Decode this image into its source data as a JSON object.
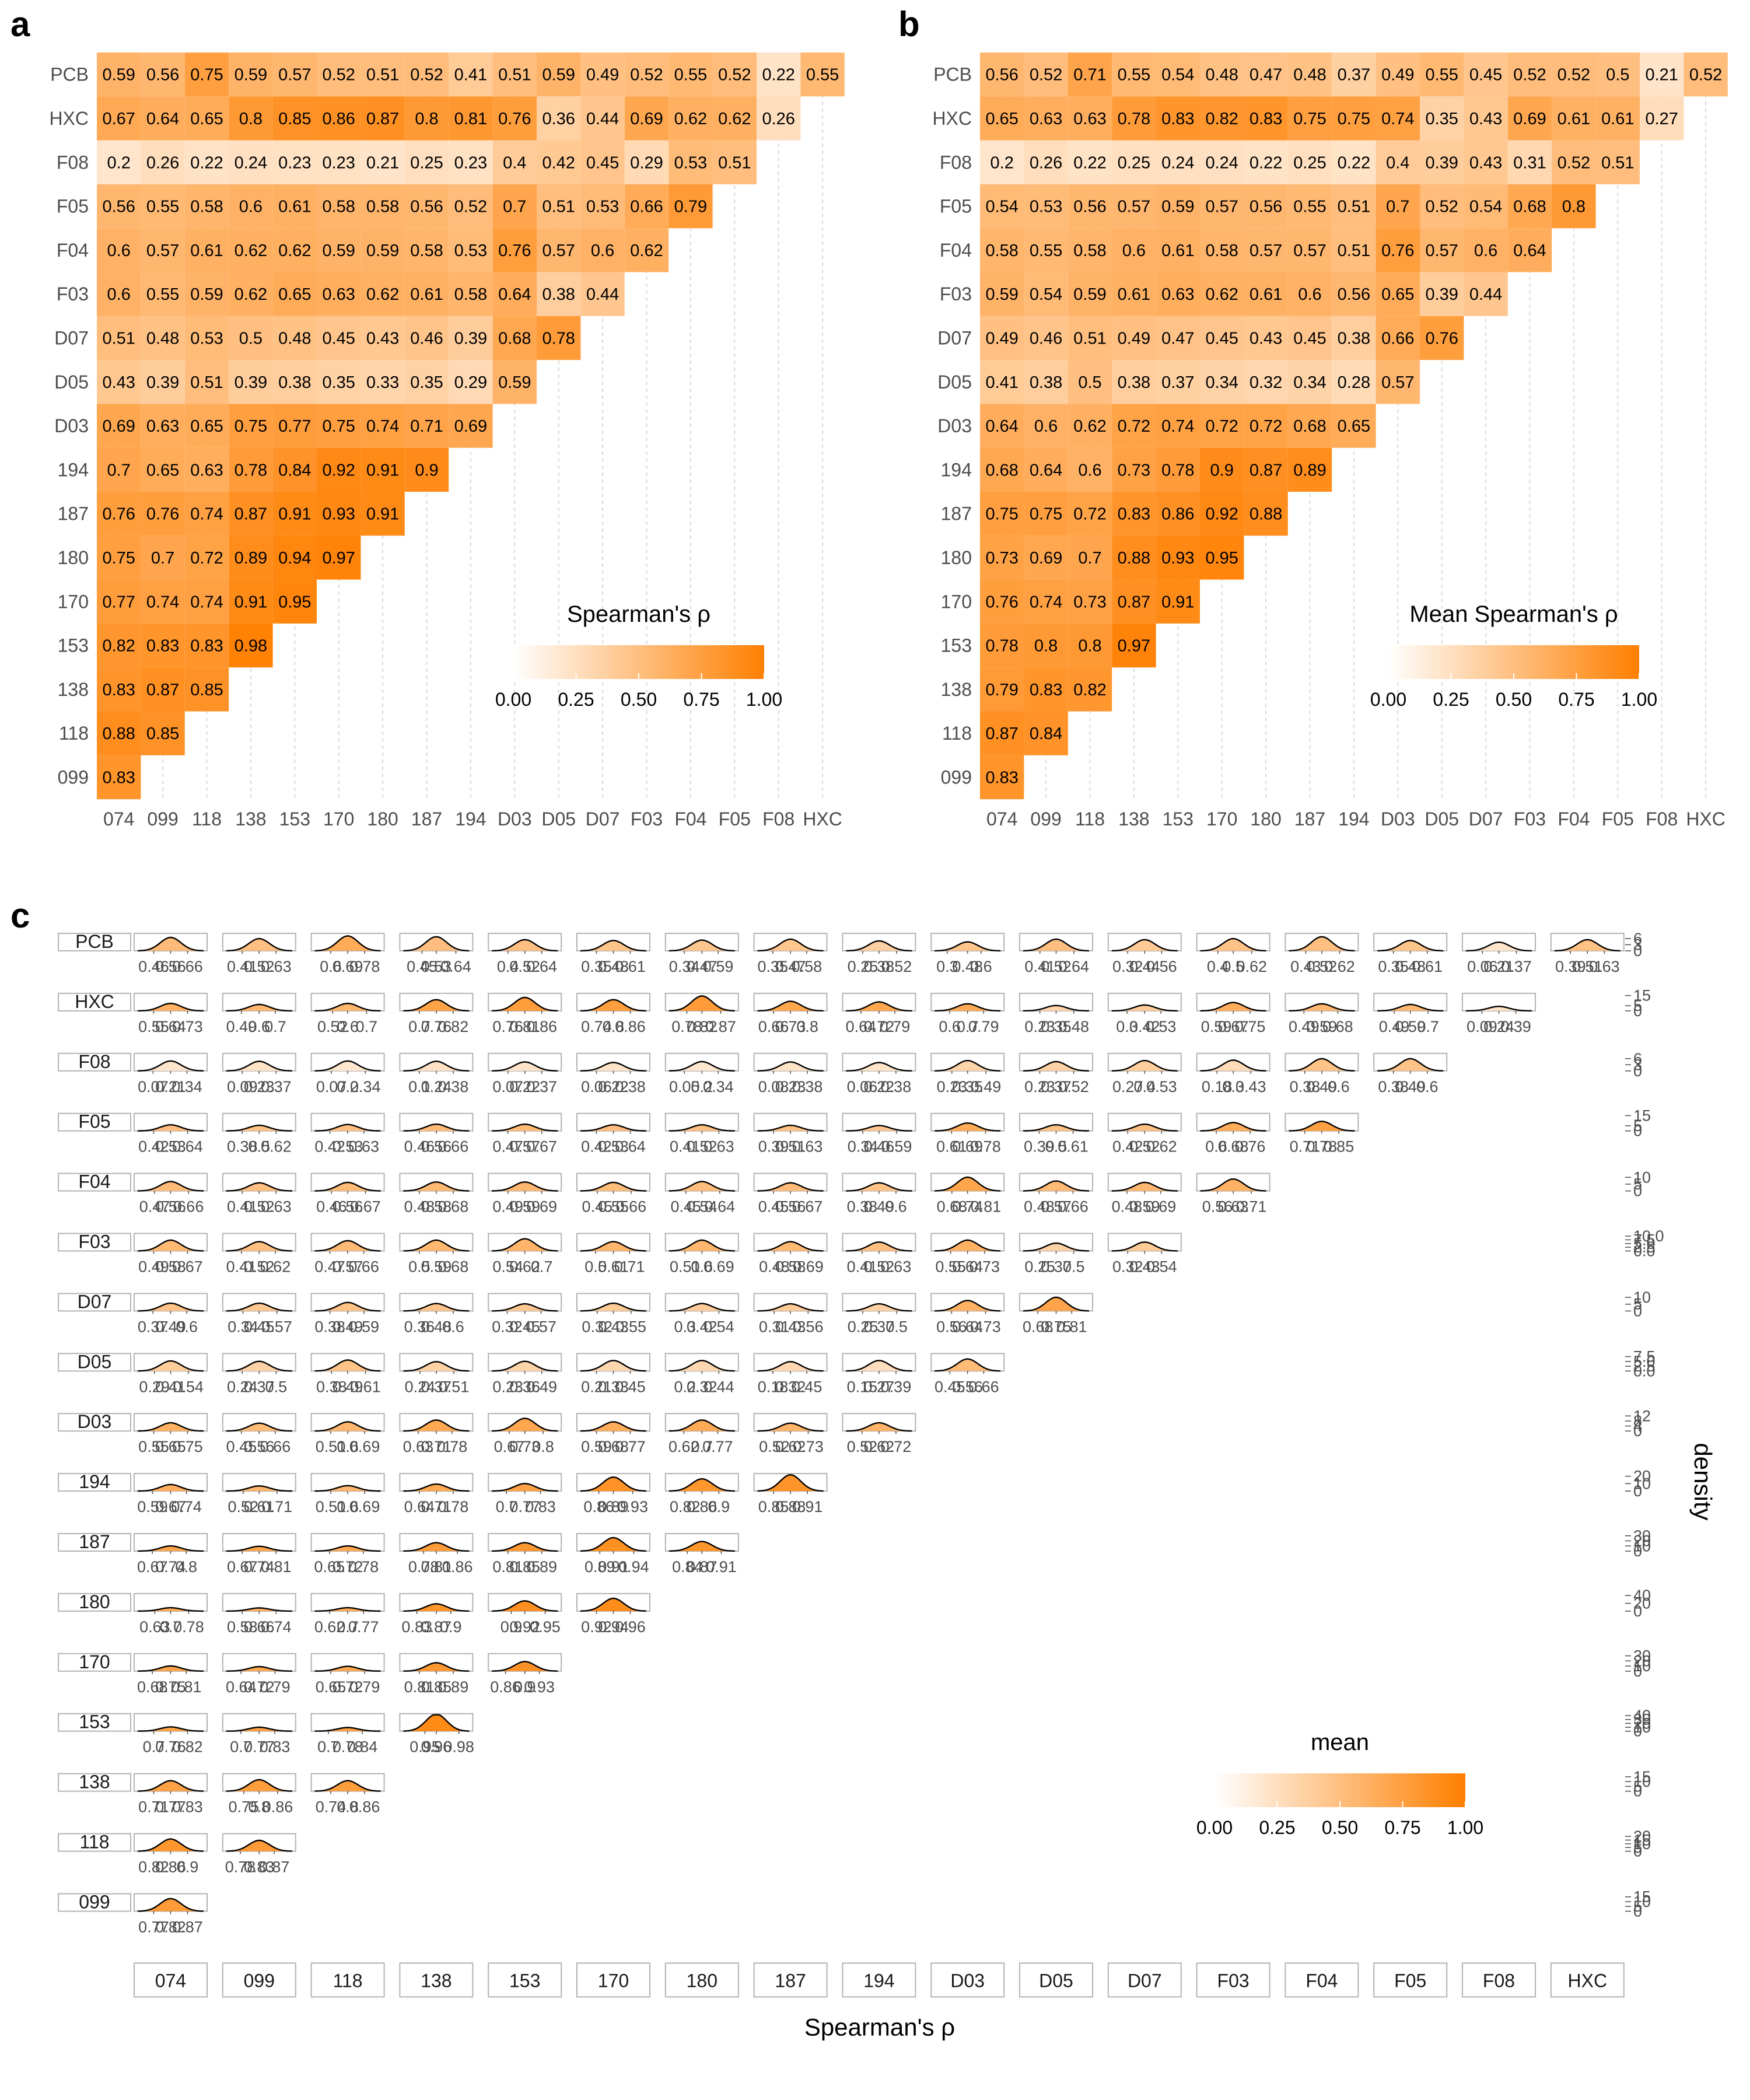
{
  "colors": {
    "low": "#ffffff",
    "high": "#ff7f00",
    "grid": "#d9d9d9",
    "strip_border": "#b3b3b3",
    "tick_text": "#4d4d4d",
    "curve": "#000000"
  },
  "panels": {
    "a": "a",
    "b": "b",
    "c": "c"
  },
  "chart_data": [
    {
      "type": "heatmap",
      "panel": "a",
      "legend_title": "Spearman's ρ",
      "legend_ticks": [
        "0.00",
        "0.25",
        "0.50",
        "0.75",
        "1.00"
      ],
      "legend_range": [
        0,
        1
      ],
      "legend_position": "inside-bottom-right",
      "xlabels": [
        "074",
        "099",
        "118",
        "138",
        "153",
        "170",
        "180",
        "187",
        "194",
        "D03",
        "D05",
        "D07",
        "F03",
        "F04",
        "F05",
        "F08",
        "HXC"
      ],
      "ylabels": [
        "PCB",
        "HXC",
        "F08",
        "F05",
        "F04",
        "F03",
        "D07",
        "D05",
        "D03",
        "194",
        "187",
        "180",
        "170",
        "153",
        "138",
        "118",
        "099"
      ],
      "rows": [
        [
          "0.59",
          "0.56",
          "0.75",
          "0.59",
          "0.57",
          "0.52",
          "0.51",
          "0.52",
          "0.41",
          "0.51",
          "0.59",
          "0.49",
          "0.52",
          "0.55",
          "0.52",
          "0.22",
          "0.55"
        ],
        [
          "0.67",
          "0.64",
          "0.65",
          "0.8",
          "0.85",
          "0.86",
          "0.87",
          "0.8",
          "0.81",
          "0.76",
          "0.36",
          "0.44",
          "0.69",
          "0.62",
          "0.62",
          "0.26"
        ],
        [
          "0.2",
          "0.26",
          "0.22",
          "0.24",
          "0.23",
          "0.23",
          "0.21",
          "0.25",
          "0.23",
          "0.4",
          "0.42",
          "0.45",
          "0.29",
          "0.53",
          "0.51"
        ],
        [
          "0.56",
          "0.55",
          "0.58",
          "0.6",
          "0.61",
          "0.58",
          "0.58",
          "0.56",
          "0.52",
          "0.7",
          "0.51",
          "0.53",
          "0.66",
          "0.79"
        ],
        [
          "0.6",
          "0.57",
          "0.61",
          "0.62",
          "0.62",
          "0.59",
          "0.59",
          "0.58",
          "0.53",
          "0.76",
          "0.57",
          "0.6",
          "0.62"
        ],
        [
          "0.6",
          "0.55",
          "0.59",
          "0.62",
          "0.65",
          "0.63",
          "0.62",
          "0.61",
          "0.58",
          "0.64",
          "0.38",
          "0.44"
        ],
        [
          "0.51",
          "0.48",
          "0.53",
          "0.5",
          "0.48",
          "0.45",
          "0.43",
          "0.46",
          "0.39",
          "0.68",
          "0.78"
        ],
        [
          "0.43",
          "0.39",
          "0.51",
          "0.39",
          "0.38",
          "0.35",
          "0.33",
          "0.35",
          "0.29",
          "0.59"
        ],
        [
          "0.69",
          "0.63",
          "0.65",
          "0.75",
          "0.77",
          "0.75",
          "0.74",
          "0.71",
          "0.69"
        ],
        [
          "0.7",
          "0.65",
          "0.63",
          "0.78",
          "0.84",
          "0.92",
          "0.91",
          "0.9"
        ],
        [
          "0.76",
          "0.76",
          "0.74",
          "0.87",
          "0.91",
          "0.93",
          "0.91"
        ],
        [
          "0.75",
          "0.7",
          "0.72",
          "0.89",
          "0.94",
          "0.97"
        ],
        [
          "0.77",
          "0.74",
          "0.74",
          "0.91",
          "0.95"
        ],
        [
          "0.82",
          "0.83",
          "0.83",
          "0.98"
        ],
        [
          "0.83",
          "0.87",
          "0.85"
        ],
        [
          "0.88",
          "0.85"
        ],
        [
          "0.83"
        ]
      ]
    },
    {
      "type": "heatmap",
      "panel": "b",
      "legend_title": "Mean Spearman's ρ",
      "legend_ticks": [
        "0.00",
        "0.25",
        "0.50",
        "0.75",
        "1.00"
      ],
      "legend_range": [
        0,
        1
      ],
      "legend_position": "inside-bottom-right",
      "xlabels": [
        "074",
        "099",
        "118",
        "138",
        "153",
        "170",
        "180",
        "187",
        "194",
        "D03",
        "D05",
        "D07",
        "F03",
        "F04",
        "F05",
        "F08",
        "HXC"
      ],
      "ylabels": [
        "PCB",
        "HXC",
        "F08",
        "F05",
        "F04",
        "F03",
        "D07",
        "D05",
        "D03",
        "194",
        "187",
        "180",
        "170",
        "153",
        "138",
        "118",
        "099"
      ],
      "rows": [
        [
          "0.56",
          "0.52",
          "0.71",
          "0.55",
          "0.54",
          "0.48",
          "0.47",
          "0.48",
          "0.37",
          "0.49",
          "0.55",
          "0.45",
          "0.52",
          "0.52",
          "0.5",
          "0.21",
          "0.52"
        ],
        [
          "0.65",
          "0.63",
          "0.63",
          "0.78",
          "0.83",
          "0.82",
          "0.83",
          "0.75",
          "0.75",
          "0.74",
          "0.35",
          "0.43",
          "0.69",
          "0.61",
          "0.61",
          "0.27"
        ],
        [
          "0.2",
          "0.26",
          "0.22",
          "0.25",
          "0.24",
          "0.24",
          "0.22",
          "0.25",
          "0.22",
          "0.4",
          "0.39",
          "0.43",
          "0.31",
          "0.52",
          "0.51"
        ],
        [
          "0.54",
          "0.53",
          "0.56",
          "0.57",
          "0.59",
          "0.57",
          "0.56",
          "0.55",
          "0.51",
          "0.7",
          "0.52",
          "0.54",
          "0.68",
          "0.8"
        ],
        [
          "0.58",
          "0.55",
          "0.58",
          "0.6",
          "0.61",
          "0.58",
          "0.57",
          "0.57",
          "0.51",
          "0.76",
          "0.57",
          "0.6",
          "0.64"
        ],
        [
          "0.59",
          "0.54",
          "0.59",
          "0.61",
          "0.63",
          "0.62",
          "0.61",
          "0.6",
          "0.56",
          "0.65",
          "0.39",
          "0.44"
        ],
        [
          "0.49",
          "0.46",
          "0.51",
          "0.49",
          "0.47",
          "0.45",
          "0.43",
          "0.45",
          "0.38",
          "0.66",
          "0.76"
        ],
        [
          "0.41",
          "0.38",
          "0.5",
          "0.38",
          "0.37",
          "0.34",
          "0.32",
          "0.34",
          "0.28",
          "0.57"
        ],
        [
          "0.64",
          "0.6",
          "0.62",
          "0.72",
          "0.74",
          "0.72",
          "0.72",
          "0.68",
          "0.65"
        ],
        [
          "0.68",
          "0.64",
          "0.6",
          "0.73",
          "0.78",
          "0.9",
          "0.87",
          "0.89"
        ],
        [
          "0.75",
          "0.75",
          "0.72",
          "0.83",
          "0.86",
          "0.92",
          "0.88"
        ],
        [
          "0.73",
          "0.69",
          "0.7",
          "0.88",
          "0.93",
          "0.95"
        ],
        [
          "0.76",
          "0.74",
          "0.73",
          "0.87",
          "0.91"
        ],
        [
          "0.78",
          "0.8",
          "0.8",
          "0.97"
        ],
        [
          "0.79",
          "0.83",
          "0.82"
        ],
        [
          "0.87",
          "0.84"
        ],
        [
          "0.83"
        ]
      ]
    },
    {
      "type": "density-grid",
      "panel": "c",
      "xlabel": "Spearman's ρ",
      "ylabel": "density",
      "legend_title": "mean",
      "legend_ticks": [
        "0.00",
        "0.25",
        "0.50",
        "0.75",
        "1.00"
      ],
      "legend_range": [
        0,
        1
      ],
      "legend_position": "inside-bottom-right",
      "col_strips": [
        "074",
        "099",
        "118",
        "138",
        "153",
        "170",
        "180",
        "187",
        "194",
        "D03",
        "D05",
        "D07",
        "F03",
        "F04",
        "F05",
        "F08",
        "HXC"
      ],
      "row_strips": [
        "PCB",
        "HXC",
        "F08",
        "F05",
        "F04",
        "F03",
        "D07",
        "D05",
        "D03",
        "194",
        "187",
        "180",
        "170",
        "153",
        "138",
        "118",
        "099"
      ],
      "row_density_ticks": [
        [
          "6",
          "3",
          "0"
        ],
        [
          "15",
          "5",
          "0"
        ],
        [
          "6",
          "3",
          "0"
        ],
        [
          "15",
          "5",
          "0"
        ],
        [
          "10",
          "5",
          "0"
        ],
        [
          "10.0",
          "7.5",
          "5.0",
          "2.5",
          "0.0"
        ],
        [
          "10",
          "5",
          "0"
        ],
        [
          "7.5",
          "5.0",
          "2.5",
          "0.0"
        ],
        [
          "12",
          "8",
          "4",
          "0"
        ],
        [
          "20",
          "10",
          "0"
        ],
        [
          "30",
          "20",
          "10",
          "0"
        ],
        [
          "40",
          "20",
          "0"
        ],
        [
          "30",
          "20",
          "10",
          "0"
        ],
        [
          "40",
          "30",
          "20",
          "10",
          "0"
        ],
        [
          "15",
          "10",
          "5",
          "0"
        ],
        [
          "20",
          "15",
          "10",
          "5",
          "0"
        ],
        [
          "15",
          "10",
          "5",
          "0"
        ]
      ],
      "row_density_max": [
        8,
        16,
        8,
        16,
        12,
        11,
        12,
        8.5,
        13,
        22,
        32,
        42,
        32,
        42,
        17,
        22,
        17
      ],
      "rows": [
        [
          "0.46 0.56 0.66",
          "0.41 0.52 0.63",
          "0.6 0.69 0.78",
          "0.45 0.53 0.64",
          "0.4 0.52 0.64",
          "0.35 0.48 0.61",
          "0.34 0.47 0.59",
          "0.35 0.47 0.58",
          "0.25 0.38 0.52",
          "0.3 0.48 0.6",
          "0.41 0.52 0.64",
          "0.32 0.44 0.56",
          "0.4 0.5 0.62",
          "0.43 0.52 0.62",
          "0.35 0.48 0.61",
          "0.06 0.21 0.37",
          "0.39 0.51 0.63"
        ],
        [
          "0.55 0.64 0.73",
          "0.49 0.6 0.7",
          "0.52 0.6 0.7",
          "0.7 0.76 0.82",
          "0.76 0.81 0.86",
          "0.74 0.8 0.86",
          "0.78 0.82 0.87",
          "0.66 0.73 0.8",
          "0.64 0.72 0.79",
          "0.6 0.7 0.79",
          "0.23 0.35 0.48",
          "0.3 0.42 0.53",
          "0.59 0.67 0.75",
          "0.49 0.59 0.68",
          "0.49 0.59 0.7",
          "0.09 0.24 0.39"
        ],
        [
          "0.07 0.21 0.34",
          "0.09 0.23 0.37",
          "0.07 0.2 0.34",
          "0.1 0.24 0.38",
          "0.07 0.22 0.37",
          "0.06 0.22 0.38",
          "0.05 0.2 0.34",
          "0.08 0.23 0.38",
          "0.06 0.22 0.38",
          "0.23 0.35 0.49",
          "0.23 0.37 0.52",
          "0.27 0.4 0.53",
          "0.18 0.3 0.43",
          "0.38 0.49 0.6",
          "0.38 0.49 0.6"
        ],
        [
          "0.42 0.53 0.64",
          "0.38 0.5 0.62",
          "0.42 0.53 0.63",
          "0.46 0.56 0.66",
          "0.47 0.57 0.67",
          "0.42 0.53 0.64",
          "0.41 0.52 0.63",
          "0.39 0.51 0.63",
          "0.34 0.46 0.59",
          "0.61 0.69 0.78",
          "0.39 0.5 0.61",
          "0.42 0.52 0.62",
          "0.6 0.68 0.76",
          "0.71 0.78 0.85"
        ],
        [
          "0.47 0.56 0.66",
          "0.41 0.52 0.63",
          "0.46 0.56 0.67",
          "0.48 0.58 0.68",
          "0.49 0.59 0.69",
          "0.45 0.55 0.66",
          "0.45 0.54 0.64",
          "0.45 0.56 0.67",
          "0.38 0.49 0.6",
          "0.68 0.74 0.81",
          "0.48 0.57 0.66",
          "0.48 0.59 0.69",
          "0.56 0.63 0.71"
        ],
        [
          "0.49 0.58 0.67",
          "0.41 0.52 0.62",
          "0.47 0.57 0.66",
          "0.5 0.59 0.68",
          "0.54 0.62 0.7",
          "0.5 0.61 0.71",
          "0.51 0.6 0.69",
          "0.48 0.58 0.69",
          "0.41 0.52 0.63",
          "0.55 0.64 0.73",
          "0.25 0.37 0.5",
          "0.32 0.43 0.54"
        ],
        [
          "0.37 0.49 0.6",
          "0.34 0.45 0.57",
          "0.38 0.49 0.59",
          "0.36 0.48 0.6",
          "0.32 0.45 0.57",
          "0.32 0.43 0.55",
          "0.3 0.42 0.54",
          "0.31 0.43 0.56",
          "0.25 0.37 0.5",
          "0.56 0.64 0.73",
          "0.68 0.75 0.81"
        ],
        [
          "0.29 0.41 0.54",
          "0.24 0.37 0.5",
          "0.38 0.49 0.61",
          "0.24 0.37 0.51",
          "0.23 0.36 0.49",
          "0.21 0.33 0.45",
          "0.2 0.32 0.44",
          "0.18 0.32 0.45",
          "0.15 0.27 0.39",
          "0.45 0.56 0.66"
        ],
        [
          "0.55 0.65 0.75",
          "0.45 0.56 0.66",
          "0.51 0.6 0.69",
          "0.63 0.71 0.78",
          "0.67 0.73 0.8",
          "0.59 0.68 0.77",
          "0.62 0.7 0.77",
          "0.52 0.62 0.73",
          "0.52 0.62 0.72"
        ],
        [
          "0.59 0.67 0.74",
          "0.52 0.61 0.71",
          "0.51 0.6 0.69",
          "0.64 0.71 0.78",
          "0.7 0.77 0.83",
          "0.86 0.89 0.93",
          "0.82 0.86 0.9",
          "0.85 0.88 0.91"
        ],
        [
          "0.67 0.74 0.8",
          "0.67 0.74 0.81",
          "0.65 0.72 0.78",
          "0.78 0.81 0.86",
          "0.81 0.85 0.89",
          "0.89 0.91 0.94",
          "0.84 0.87 0.91"
        ],
        [
          "0.63 0.7 0.78",
          "0.58 0.66 0.74",
          "0.62 0.7 0.77",
          "0.83 0.87 0.9",
          "0.9 0.92 0.95",
          "0.92 0.94 0.96"
        ],
        [
          "0.68 0.75 0.81",
          "0.64 0.72 0.79",
          "0.65 0.72 0.79",
          "0.81 0.85 0.89",
          "0.86 0.9 0.93"
        ],
        [
          "0.7 0.76 0.82",
          "0.7 0.77 0.83",
          "0.7 0.78 0.84",
          "0.95 0.96 0.98"
        ],
        [
          "0.71 0.77 0.83",
          "0.75 0.8 0.86",
          "0.74 0.8 0.86"
        ],
        [
          "0.82 0.86 0.9",
          "0.78 0.83 0.87"
        ],
        [
          "0.77 0.82 0.87"
        ]
      ]
    }
  ]
}
